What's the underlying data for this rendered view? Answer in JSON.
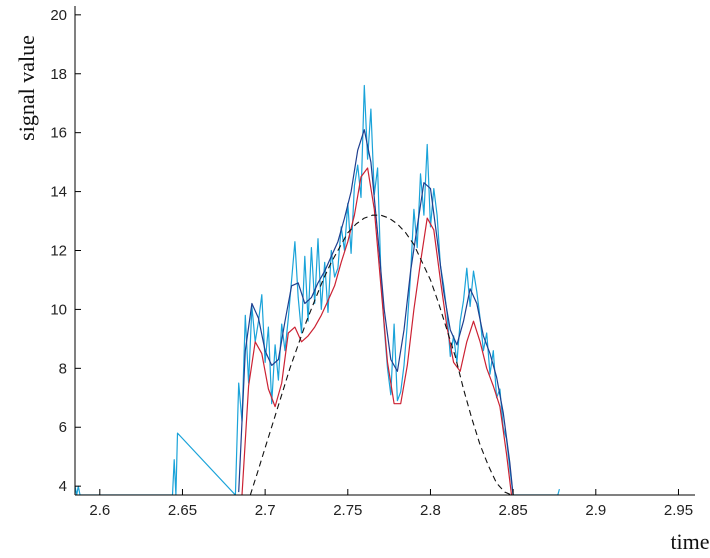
{
  "chart_data": {
    "type": "line",
    "title": "",
    "xlabel": "time",
    "ylabel": "signal value",
    "xlim": [
      2.585,
      2.96
    ],
    "ylim": [
      3.7,
      20.3
    ],
    "xticks": [
      2.6,
      2.65,
      2.7,
      2.75,
      2.8,
      2.85,
      2.9,
      2.95
    ],
    "xtick_labels": [
      "2.6",
      "2.65",
      "2.7",
      "2.75",
      "2.8",
      "2.85",
      "2.9",
      "2.95"
    ],
    "yticks": [
      4,
      6,
      8,
      10,
      12,
      14,
      16,
      18,
      20
    ],
    "ytick_labels": [
      "4",
      "6",
      "8",
      "10",
      "12",
      "14",
      "16",
      "18",
      "20"
    ],
    "grid": false,
    "legend": "none",
    "series": [
      {
        "color": "#1aa3d9",
        "style": "solid",
        "x": [
          2.585,
          2.586,
          2.587,
          2.588,
          2.644,
          2.645,
          2.646,
          2.647,
          2.682,
          2.684,
          2.686,
          2.688,
          2.69,
          2.692,
          2.694,
          2.696,
          2.698,
          2.7,
          2.702,
          2.704,
          2.706,
          2.708,
          2.71,
          2.712,
          2.714,
          2.716,
          2.718,
          2.72,
          2.722,
          2.724,
          2.726,
          2.728,
          2.73,
          2.732,
          2.734,
          2.736,
          2.738,
          2.74,
          2.742,
          2.744,
          2.746,
          2.748,
          2.75,
          2.752,
          2.754,
          2.756,
          2.758,
          2.76,
          2.762,
          2.764,
          2.766,
          2.768,
          2.77,
          2.772,
          2.774,
          2.776,
          2.778,
          2.78,
          2.782,
          2.784,
          2.786,
          2.788,
          2.79,
          2.792,
          2.794,
          2.796,
          2.798,
          2.8,
          2.802,
          2.804,
          2.806,
          2.808,
          2.81,
          2.812,
          2.814,
          2.816,
          2.818,
          2.82,
          2.822,
          2.824,
          2.826,
          2.828,
          2.83,
          2.832,
          2.834,
          2.836,
          2.838,
          2.84,
          2.842,
          2.844,
          2.846,
          2.848,
          2.85,
          2.877,
          2.878
        ],
        "y": [
          4.0,
          3.7,
          4.0,
          3.7,
          3.7,
          4.9,
          3.7,
          5.8,
          3.7,
          7.5,
          6.2,
          9.8,
          7.5,
          10.1,
          8.9,
          9.6,
          10.5,
          8.2,
          9.4,
          6.8,
          8.8,
          7.6,
          9.5,
          8.6,
          9.7,
          11.0,
          12.3,
          10.4,
          9.2,
          11.8,
          9.6,
          12.1,
          10.2,
          12.4,
          10.0,
          11.6,
          9.9,
          12.0,
          11.1,
          11.4,
          12.8,
          12.0,
          13.6,
          11.9,
          14.2,
          14.9,
          13.8,
          17.6,
          15.1,
          16.8,
          13.9,
          14.8,
          11.2,
          9.4,
          8.0,
          7.1,
          9.5,
          6.9,
          7.2,
          8.1,
          9.5,
          11.2,
          13.4,
          12.1,
          14.6,
          13.2,
          15.6,
          12.8,
          14.1,
          13.2,
          11.5,
          10.8,
          9.9,
          8.4,
          9.1,
          8.2,
          9.6,
          10.3,
          11.4,
          10.1,
          11.3,
          10.6,
          9.7,
          8.6,
          9.2,
          7.8,
          8.6,
          7.0,
          7.3,
          6.0,
          5.6,
          4.6,
          3.7,
          3.7,
          3.9
        ]
      },
      {
        "color": "#1f3f8f",
        "style": "solid",
        "x": [
          2.684,
          2.688,
          2.692,
          2.696,
          2.7,
          2.704,
          2.708,
          2.712,
          2.716,
          2.72,
          2.724,
          2.728,
          2.732,
          2.736,
          2.74,
          2.744,
          2.748,
          2.752,
          2.756,
          2.76,
          2.764,
          2.768,
          2.772,
          2.776,
          2.78,
          2.784,
          2.788,
          2.792,
          2.796,
          2.8,
          2.804,
          2.808,
          2.812,
          2.816,
          2.82,
          2.824,
          2.828,
          2.832,
          2.836,
          2.84,
          2.844,
          2.848,
          2.85
        ],
        "y": [
          3.8,
          8.6,
          10.2,
          9.7,
          8.6,
          8.1,
          8.3,
          9.6,
          10.8,
          10.9,
          10.2,
          10.4,
          10.9,
          11.3,
          11.8,
          12.3,
          13.1,
          14.0,
          15.4,
          16.1,
          15.0,
          12.6,
          10.0,
          8.3,
          7.9,
          9.3,
          11.3,
          12.8,
          14.3,
          14.1,
          12.4,
          10.6,
          9.3,
          8.8,
          9.6,
          10.7,
          10.2,
          9.1,
          8.5,
          7.7,
          6.5,
          4.8,
          3.7
        ]
      },
      {
        "color": "#cc2233",
        "style": "solid",
        "x": [
          2.686,
          2.69,
          2.694,
          2.698,
          2.702,
          2.706,
          2.71,
          2.714,
          2.718,
          2.722,
          2.726,
          2.73,
          2.734,
          2.738,
          2.742,
          2.746,
          2.75,
          2.754,
          2.758,
          2.762,
          2.766,
          2.77,
          2.774,
          2.778,
          2.782,
          2.786,
          2.79,
          2.794,
          2.798,
          2.802,
          2.806,
          2.81,
          2.814,
          2.818,
          2.822,
          2.826,
          2.83,
          2.834,
          2.838,
          2.842,
          2.846,
          2.849
        ],
        "y": [
          3.7,
          7.4,
          8.9,
          8.5,
          7.3,
          6.7,
          7.5,
          9.2,
          9.4,
          8.9,
          9.1,
          9.4,
          9.8,
          10.3,
          10.8,
          11.6,
          12.3,
          13.2,
          14.5,
          14.8,
          13.4,
          10.8,
          8.2,
          6.8,
          6.8,
          8.1,
          10.0,
          11.6,
          13.1,
          12.7,
          11.0,
          9.4,
          8.2,
          7.9,
          8.9,
          9.6,
          8.9,
          8.0,
          7.4,
          6.7,
          5.1,
          3.7
        ]
      },
      {
        "color": "#111111",
        "style": "dashed",
        "x": [
          2.691,
          2.695,
          2.7,
          2.705,
          2.71,
          2.715,
          2.72,
          2.725,
          2.73,
          2.735,
          2.74,
          2.745,
          2.75,
          2.755,
          2.76,
          2.765,
          2.77,
          2.775,
          2.78,
          2.785,
          2.79,
          2.795,
          2.8,
          2.805,
          2.81,
          2.815,
          2.82,
          2.825,
          2.83,
          2.835,
          2.84,
          2.845,
          2.849
        ],
        "y": [
          3.7,
          4.4,
          5.3,
          6.2,
          7.1,
          8.0,
          8.8,
          9.6,
          10.3,
          11.0,
          11.6,
          12.1,
          12.6,
          12.9,
          13.1,
          13.2,
          13.2,
          13.1,
          12.9,
          12.6,
          12.2,
          11.6,
          11.0,
          10.2,
          9.3,
          8.4,
          7.3,
          6.3,
          5.4,
          4.7,
          4.1,
          3.8,
          3.7
        ]
      }
    ]
  }
}
